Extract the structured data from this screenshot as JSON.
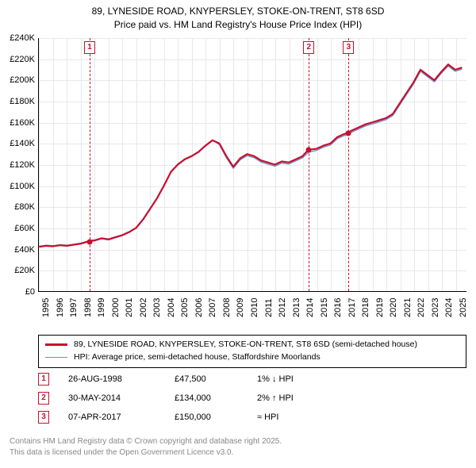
{
  "title_line1": "89, LYNESIDE ROAD, KNYPERSLEY, STOKE-ON-TRENT, ST8 6SD",
  "title_line2": "Price paid vs. HM Land Registry's House Price Index (HPI)",
  "chart": {
    "type": "line",
    "x_range": [
      1995,
      2025.8
    ],
    "y_range": [
      0,
      240000
    ],
    "y_ticks": [
      0,
      20000,
      40000,
      60000,
      80000,
      100000,
      120000,
      140000,
      160000,
      180000,
      200000,
      220000,
      240000
    ],
    "y_tick_labels": [
      "£0",
      "£20K",
      "£40K",
      "£60K",
      "£80K",
      "£100K",
      "£120K",
      "£140K",
      "£160K",
      "£180K",
      "£200K",
      "£220K",
      "£240K"
    ],
    "x_ticks": [
      1995,
      1996,
      1997,
      1998,
      1999,
      2000,
      2001,
      2002,
      2003,
      2004,
      2005,
      2006,
      2007,
      2008,
      2009,
      2010,
      2011,
      2012,
      2013,
      2014,
      2015,
      2016,
      2017,
      2018,
      2019,
      2020,
      2021,
      2022,
      2023,
      2024,
      2025
    ],
    "grid_color": "#e8e8ec",
    "background_color": "#ffffff",
    "series": [
      {
        "name": "price_paid",
        "color": "#c8102e",
        "width": 2.2,
        "points": [
          [
            1995,
            42000
          ],
          [
            1995.5,
            43000
          ],
          [
            1996,
            42500
          ],
          [
            1996.5,
            43500
          ],
          [
            1997,
            43000
          ],
          [
            1997.5,
            44000
          ],
          [
            1998,
            45000
          ],
          [
            1998.65,
            47500
          ],
          [
            1999,
            48000
          ],
          [
            1999.5,
            50000
          ],
          [
            2000,
            49000
          ],
          [
            2000.5,
            51000
          ],
          [
            2001,
            53000
          ],
          [
            2001.5,
            56000
          ],
          [
            2002,
            60000
          ],
          [
            2002.5,
            68000
          ],
          [
            2003,
            78000
          ],
          [
            2003.5,
            88000
          ],
          [
            2004,
            100000
          ],
          [
            2004.5,
            113000
          ],
          [
            2005,
            120000
          ],
          [
            2005.5,
            125000
          ],
          [
            2006,
            128000
          ],
          [
            2006.5,
            132000
          ],
          [
            2007,
            138000
          ],
          [
            2007.5,
            143000
          ],
          [
            2008,
            140000
          ],
          [
            2008.5,
            128000
          ],
          [
            2009,
            118000
          ],
          [
            2009.5,
            126000
          ],
          [
            2010,
            130000
          ],
          [
            2010.5,
            128000
          ],
          [
            2011,
            124000
          ],
          [
            2011.5,
            122000
          ],
          [
            2012,
            120000
          ],
          [
            2012.5,
            123000
          ],
          [
            2013,
            122000
          ],
          [
            2013.5,
            125000
          ],
          [
            2014,
            128000
          ],
          [
            2014.41,
            134000
          ],
          [
            2015,
            135000
          ],
          [
            2015.5,
            138000
          ],
          [
            2016,
            140000
          ],
          [
            2016.5,
            146000
          ],
          [
            2017,
            149000
          ],
          [
            2017.27,
            150000
          ],
          [
            2017.5,
            152000
          ],
          [
            2018,
            155000
          ],
          [
            2018.5,
            158000
          ],
          [
            2019,
            160000
          ],
          [
            2019.5,
            162000
          ],
          [
            2020,
            164000
          ],
          [
            2020.5,
            168000
          ],
          [
            2021,
            178000
          ],
          [
            2021.5,
            188000
          ],
          [
            2022,
            198000
          ],
          [
            2022.5,
            210000
          ],
          [
            2023,
            205000
          ],
          [
            2023.5,
            200000
          ],
          [
            2024,
            208000
          ],
          [
            2024.5,
            215000
          ],
          [
            2025,
            210000
          ],
          [
            2025.5,
            212000
          ]
        ]
      },
      {
        "name": "hpi",
        "color": "#6b8fc9",
        "width": 1.4,
        "points": [
          [
            1995,
            42500
          ],
          [
            1995.5,
            43500
          ],
          [
            1996,
            43000
          ],
          [
            1996.5,
            44000
          ],
          [
            1997,
            43500
          ],
          [
            1997.5,
            44500
          ],
          [
            1998,
            45500
          ],
          [
            1998.65,
            48000
          ],
          [
            1999,
            48500
          ],
          [
            1999.5,
            50500
          ],
          [
            2000,
            49500
          ],
          [
            2000.5,
            51500
          ],
          [
            2001,
            53500
          ],
          [
            2001.5,
            56500
          ],
          [
            2002,
            60500
          ],
          [
            2002.5,
            68500
          ],
          [
            2003,
            78500
          ],
          [
            2003.5,
            88500
          ],
          [
            2004,
            100500
          ],
          [
            2004.5,
            113500
          ],
          [
            2005,
            120500
          ],
          [
            2005.5,
            125500
          ],
          [
            2006,
            128500
          ],
          [
            2006.5,
            132500
          ],
          [
            2007,
            138500
          ],
          [
            2007.5,
            143500
          ],
          [
            2008,
            139000
          ],
          [
            2008.5,
            126500
          ],
          [
            2009,
            116500
          ],
          [
            2009.5,
            124500
          ],
          [
            2010,
            128500
          ],
          [
            2010.5,
            126500
          ],
          [
            2011,
            122500
          ],
          [
            2011.5,
            120500
          ],
          [
            2012,
            118500
          ],
          [
            2012.5,
            121500
          ],
          [
            2013,
            120500
          ],
          [
            2013.5,
            123500
          ],
          [
            2014,
            126500
          ],
          [
            2014.41,
            131500
          ],
          [
            2015,
            133500
          ],
          [
            2015.5,
            136500
          ],
          [
            2016,
            138500
          ],
          [
            2016.5,
            144500
          ],
          [
            2017,
            147500
          ],
          [
            2017.27,
            148500
          ],
          [
            2017.5,
            150500
          ],
          [
            2018,
            153500
          ],
          [
            2018.5,
            156500
          ],
          [
            2019,
            158500
          ],
          [
            2019.5,
            160500
          ],
          [
            2020,
            162500
          ],
          [
            2020.5,
            166500
          ],
          [
            2021,
            176500
          ],
          [
            2021.5,
            186500
          ],
          [
            2022,
            196500
          ],
          [
            2022.5,
            208500
          ],
          [
            2023,
            203500
          ],
          [
            2023.5,
            198500
          ],
          [
            2024,
            206500
          ],
          [
            2024.5,
            213500
          ],
          [
            2025,
            208500
          ],
          [
            2025.5,
            210500
          ]
        ]
      }
    ],
    "markers": [
      {
        "n": "1",
        "x": 1998.65,
        "y": 47500
      },
      {
        "n": "2",
        "x": 2014.41,
        "y": 134000
      },
      {
        "n": "3",
        "x": 2017.27,
        "y": 150000
      }
    ]
  },
  "legend": {
    "series1": "89, LYNESIDE ROAD, KNYPERSLEY, STOKE-ON-TRENT, ST8 6SD (semi-detached house)",
    "series2": "HPI: Average price, semi-detached house, Staffordshire Moorlands"
  },
  "events": [
    {
      "n": "1",
      "date": "26-AUG-1998",
      "price": "£47,500",
      "delta": "1% ↓ HPI"
    },
    {
      "n": "2",
      "date": "30-MAY-2014",
      "price": "£134,000",
      "delta": "2% ↑ HPI"
    },
    {
      "n": "3",
      "date": "07-APR-2017",
      "price": "£150,000",
      "delta": "≈ HPI"
    }
  ],
  "attribution_line1": "Contains HM Land Registry data © Crown copyright and database right 2025.",
  "attribution_line2": "This data is licensed under the Open Government Licence v3.0."
}
